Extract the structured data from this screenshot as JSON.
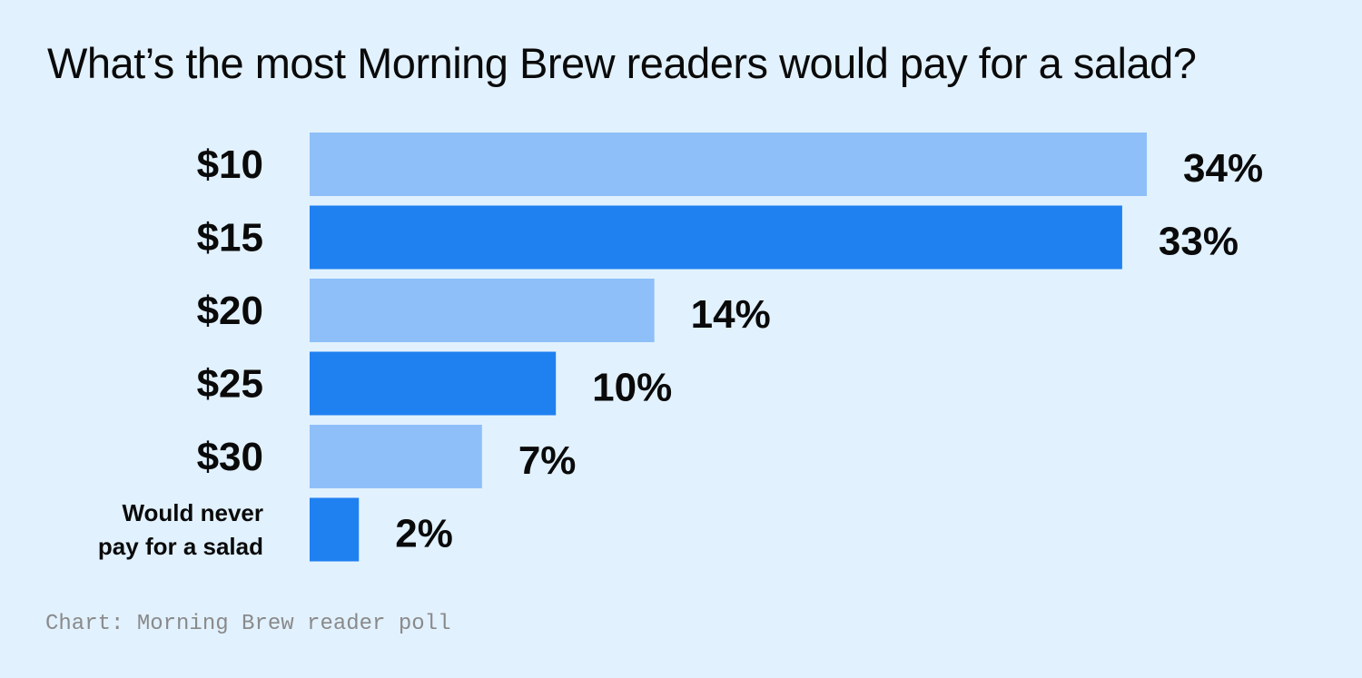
{
  "background": "#e1f1fe",
  "colors": {
    "light_bar": "#8ebff8",
    "dark_bar": "#1f80f0",
    "text": "#0a0a0a",
    "source": "#8a8a8a"
  },
  "title": "What’s the most Morning Brew readers would pay for a salad?",
  "source": "Chart: Morning Brew reader poll",
  "chart_data": {
    "type": "bar",
    "orientation": "horizontal",
    "categories": [
      "$10",
      "$15",
      "$20",
      "$25",
      "$30",
      "Would never pay for a salad"
    ],
    "category_lines": [
      [
        "$10"
      ],
      [
        "$15"
      ],
      [
        "$20"
      ],
      [
        "$25"
      ],
      [
        "$30"
      ],
      [
        "Would never",
        "pay for a salad"
      ]
    ],
    "values": [
      34,
      33,
      14,
      10,
      7,
      2
    ],
    "value_labels": [
      "34%",
      "33%",
      "14%",
      "10%",
      "7%",
      "2%"
    ],
    "unit": "%",
    "bar_colors": [
      "#8ebff8",
      "#1f80f0",
      "#8ebff8",
      "#1f80f0",
      "#8ebff8",
      "#1f80f0"
    ],
    "xlim": [
      0,
      34
    ],
    "grid": false,
    "legend": "none"
  }
}
